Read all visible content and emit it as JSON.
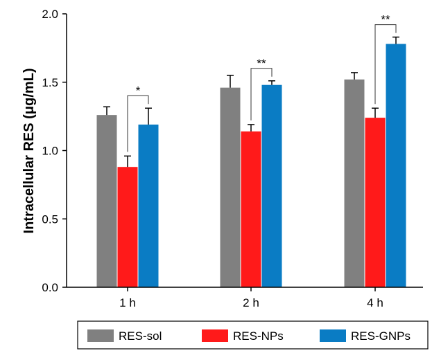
{
  "chart_data": {
    "type": "bar",
    "title": "",
    "xlabel": "",
    "ylabel": "Intracellular RES (μg/mL)",
    "ylim": [
      0,
      2.0
    ],
    "yticks": [
      "0.0",
      "0.5",
      "1.0",
      "1.5",
      "2.0"
    ],
    "categories": [
      "1 h",
      "2 h",
      "4 h"
    ],
    "series": [
      {
        "name": "RES-sol",
        "color": "#808080",
        "values": [
          1.26,
          1.46,
          1.52
        ],
        "errors": [
          0.06,
          0.09,
          0.05
        ]
      },
      {
        "name": "RES-NPs",
        "color": "#ff1a1a",
        "values": [
          0.88,
          1.14,
          1.24
        ],
        "errors": [
          0.08,
          0.05,
          0.07
        ]
      },
      {
        "name": "RES-GNPs",
        "color": "#0a7cc4",
        "values": [
          1.19,
          1.48,
          1.78
        ],
        "errors": [
          0.12,
          0.03,
          0.05
        ]
      }
    ],
    "annotations": [
      {
        "category": "1 h",
        "text": "*"
      },
      {
        "category": "2 h",
        "text": "**"
      },
      {
        "category": "4 h",
        "text": "**"
      }
    ],
    "legend_position": "bottom",
    "grid": false
  }
}
